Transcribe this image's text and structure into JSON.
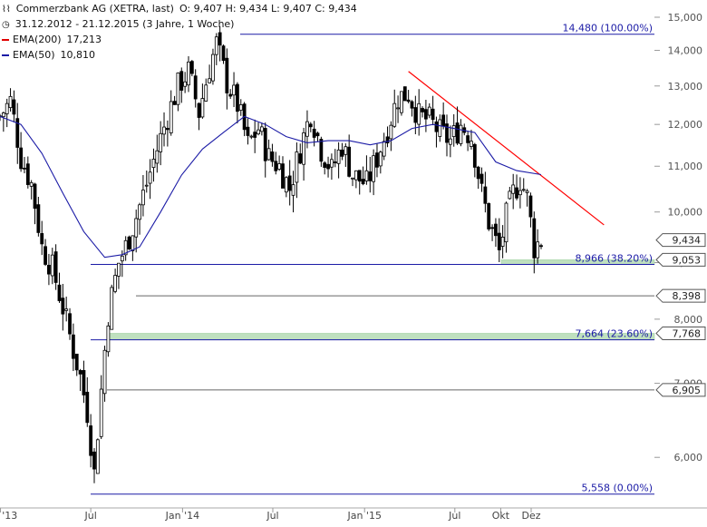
{
  "header": {
    "title": "Commerzbank AG (XETRA, last)",
    "ohlc": "O: 9,407  H: 9,434  L: 9,407  C: 9,434",
    "range": "31.12.2012 - 21.12.2015 (3 Jahre, 1 Woche)",
    "ema200_label": "EMA(200)",
    "ema200_value": "17,213",
    "ema50_label": "EMA(50)",
    "ema50_value": "10,810"
  },
  "colors": {
    "candle": "#000000",
    "ema200": "#e00000",
    "ema50": "#1b1ba6",
    "fib_line": "#1b1ba6",
    "support_line": "#666666",
    "trendline": "#ff0000",
    "zone_fill": "#bfe0bf",
    "label_text": "#1b1ba6"
  },
  "chart_data": {
    "type": "candlestick",
    "title": "Commerzbank AG (XETRA, last)",
    "yscale": "log",
    "ylim": [
      5.4,
      15.2
    ],
    "xlim": [
      "2012-12-31",
      "2015-12-21"
    ],
    "y_ticks": [
      "15,000",
      "14,000",
      "13,000",
      "12,000",
      "11,000",
      "10,000",
      "9,000",
      "8,000",
      "7,000",
      "6,000"
    ],
    "x_ticks": [
      "Jan '13",
      "Jul",
      "Jan '14",
      "Jul",
      "Jan '15",
      "Jul",
      "Okt",
      "Dez"
    ],
    "fib_levels": [
      {
        "label": "14,480 (100.00%)",
        "value": 14.48
      },
      {
        "label": "8,966 (38.20%)",
        "value": 8.966
      },
      {
        "label": "7,664 (23.60%)",
        "value": 7.664
      },
      {
        "label": "5,558 (0.00%)",
        "value": 5.558
      }
    ],
    "price_tags": [
      {
        "label": "9,434",
        "value": 9.434
      },
      {
        "label": "9,053",
        "value": 9.053
      },
      {
        "label": "8,398",
        "value": 8.398
      },
      {
        "label": "7,768",
        "value": 7.768
      },
      {
        "label": "6,905",
        "value": 6.905
      }
    ],
    "horizontal_lines": [
      8.398,
      6.905
    ],
    "zones": [
      [
        7.664,
        7.768
      ],
      [
        8.966,
        9.053
      ]
    ],
    "trendline": [
      [
        "2015-03-30",
        13.4
      ],
      [
        "2015-12-14",
        10.85
      ]
    ],
    "anchors": [
      [
        "2012-12-31",
        12.2
      ],
      [
        "2013-01-21",
        12.6
      ],
      [
        "2013-02-11",
        11.2
      ],
      [
        "2013-03-04",
        10.6
      ],
      [
        "2013-03-25",
        9.3
      ],
      [
        "2013-04-15",
        8.9
      ],
      [
        "2013-05-06",
        8.2
      ],
      [
        "2013-05-27",
        7.5
      ],
      [
        "2013-06-10",
        7.1
      ],
      [
        "2013-06-24",
        6.6
      ],
      [
        "2013-07-08",
        5.8
      ],
      [
        "2013-07-22",
        6.9
      ],
      [
        "2013-08-05",
        8.1
      ],
      [
        "2013-08-26",
        9.0
      ],
      [
        "2013-09-09",
        9.3
      ],
      [
        "2013-09-30",
        9.9
      ],
      [
        "2013-10-21",
        10.6
      ],
      [
        "2013-11-11",
        11.4
      ],
      [
        "2013-12-02",
        12.2
      ],
      [
        "2013-12-23",
        13.0
      ],
      [
        "2014-01-13",
        13.4
      ],
      [
        "2014-02-03",
        12.3
      ],
      [
        "2014-02-24",
        13.5
      ],
      [
        "2014-03-10",
        14.2
      ],
      [
        "2014-03-31",
        13.1
      ],
      [
        "2014-04-21",
        12.5
      ],
      [
        "2014-05-12",
        11.5
      ],
      [
        "2014-06-02",
        11.9
      ],
      [
        "2014-06-23",
        11.2
      ],
      [
        "2014-07-14",
        11.0
      ],
      [
        "2014-08-04",
        10.5
      ],
      [
        "2014-08-25",
        11.4
      ],
      [
        "2014-09-15",
        12.3
      ],
      [
        "2014-10-06",
        11.4
      ],
      [
        "2014-10-27",
        10.9
      ],
      [
        "2014-11-17",
        11.5
      ],
      [
        "2014-12-08",
        10.8
      ],
      [
        "2015-01-05",
        10.6
      ],
      [
        "2015-01-26",
        11.2
      ],
      [
        "2015-02-16",
        11.9
      ],
      [
        "2015-03-09",
        12.7
      ],
      [
        "2015-03-30",
        12.8
      ],
      [
        "2015-04-20",
        12.2
      ],
      [
        "2015-05-11",
        12.1
      ],
      [
        "2015-06-01",
        11.8
      ],
      [
        "2015-06-22",
        11.6
      ],
      [
        "2015-07-13",
        12.0
      ],
      [
        "2015-08-03",
        11.7
      ],
      [
        "2015-08-24",
        10.4
      ],
      [
        "2015-09-07",
        9.8
      ],
      [
        "2015-09-28",
        9.2
      ],
      [
        "2015-10-12",
        9.9
      ],
      [
        "2015-10-26",
        10.4
      ],
      [
        "2015-11-09",
        10.7
      ],
      [
        "2015-11-23",
        10.3
      ],
      [
        "2015-12-07",
        9.3
      ],
      [
        "2015-12-21",
        9.43
      ]
    ],
    "ema50_line": [
      [
        "2012-12-31",
        12.2
      ],
      [
        "2013-02-11",
        12.0
      ],
      [
        "2013-03-25",
        11.3
      ],
      [
        "2013-05-06",
        10.4
      ],
      [
        "2013-06-17",
        9.6
      ],
      [
        "2013-07-29",
        9.1
      ],
      [
        "2013-09-02",
        9.15
      ],
      [
        "2013-10-07",
        9.3
      ],
      [
        "2013-11-18",
        10.0
      ],
      [
        "2013-12-30",
        10.8
      ],
      [
        "2014-02-10",
        11.4
      ],
      [
        "2014-03-24",
        11.8
      ],
      [
        "2014-05-05",
        12.2
      ],
      [
        "2014-06-16",
        12.0
      ],
      [
        "2014-07-28",
        11.7
      ],
      [
        "2014-09-08",
        11.55
      ],
      [
        "2014-10-20",
        11.6
      ],
      [
        "2014-12-01",
        11.6
      ],
      [
        "2015-01-12",
        11.5
      ],
      [
        "2015-02-23",
        11.6
      ],
      [
        "2015-04-06",
        11.9
      ],
      [
        "2015-05-18",
        12.0
      ],
      [
        "2015-06-29",
        11.9
      ],
      [
        "2015-08-10",
        11.8
      ],
      [
        "2015-09-21",
        11.1
      ],
      [
        "2015-11-02",
        10.9
      ],
      [
        "2015-12-21",
        10.81
      ]
    ]
  }
}
